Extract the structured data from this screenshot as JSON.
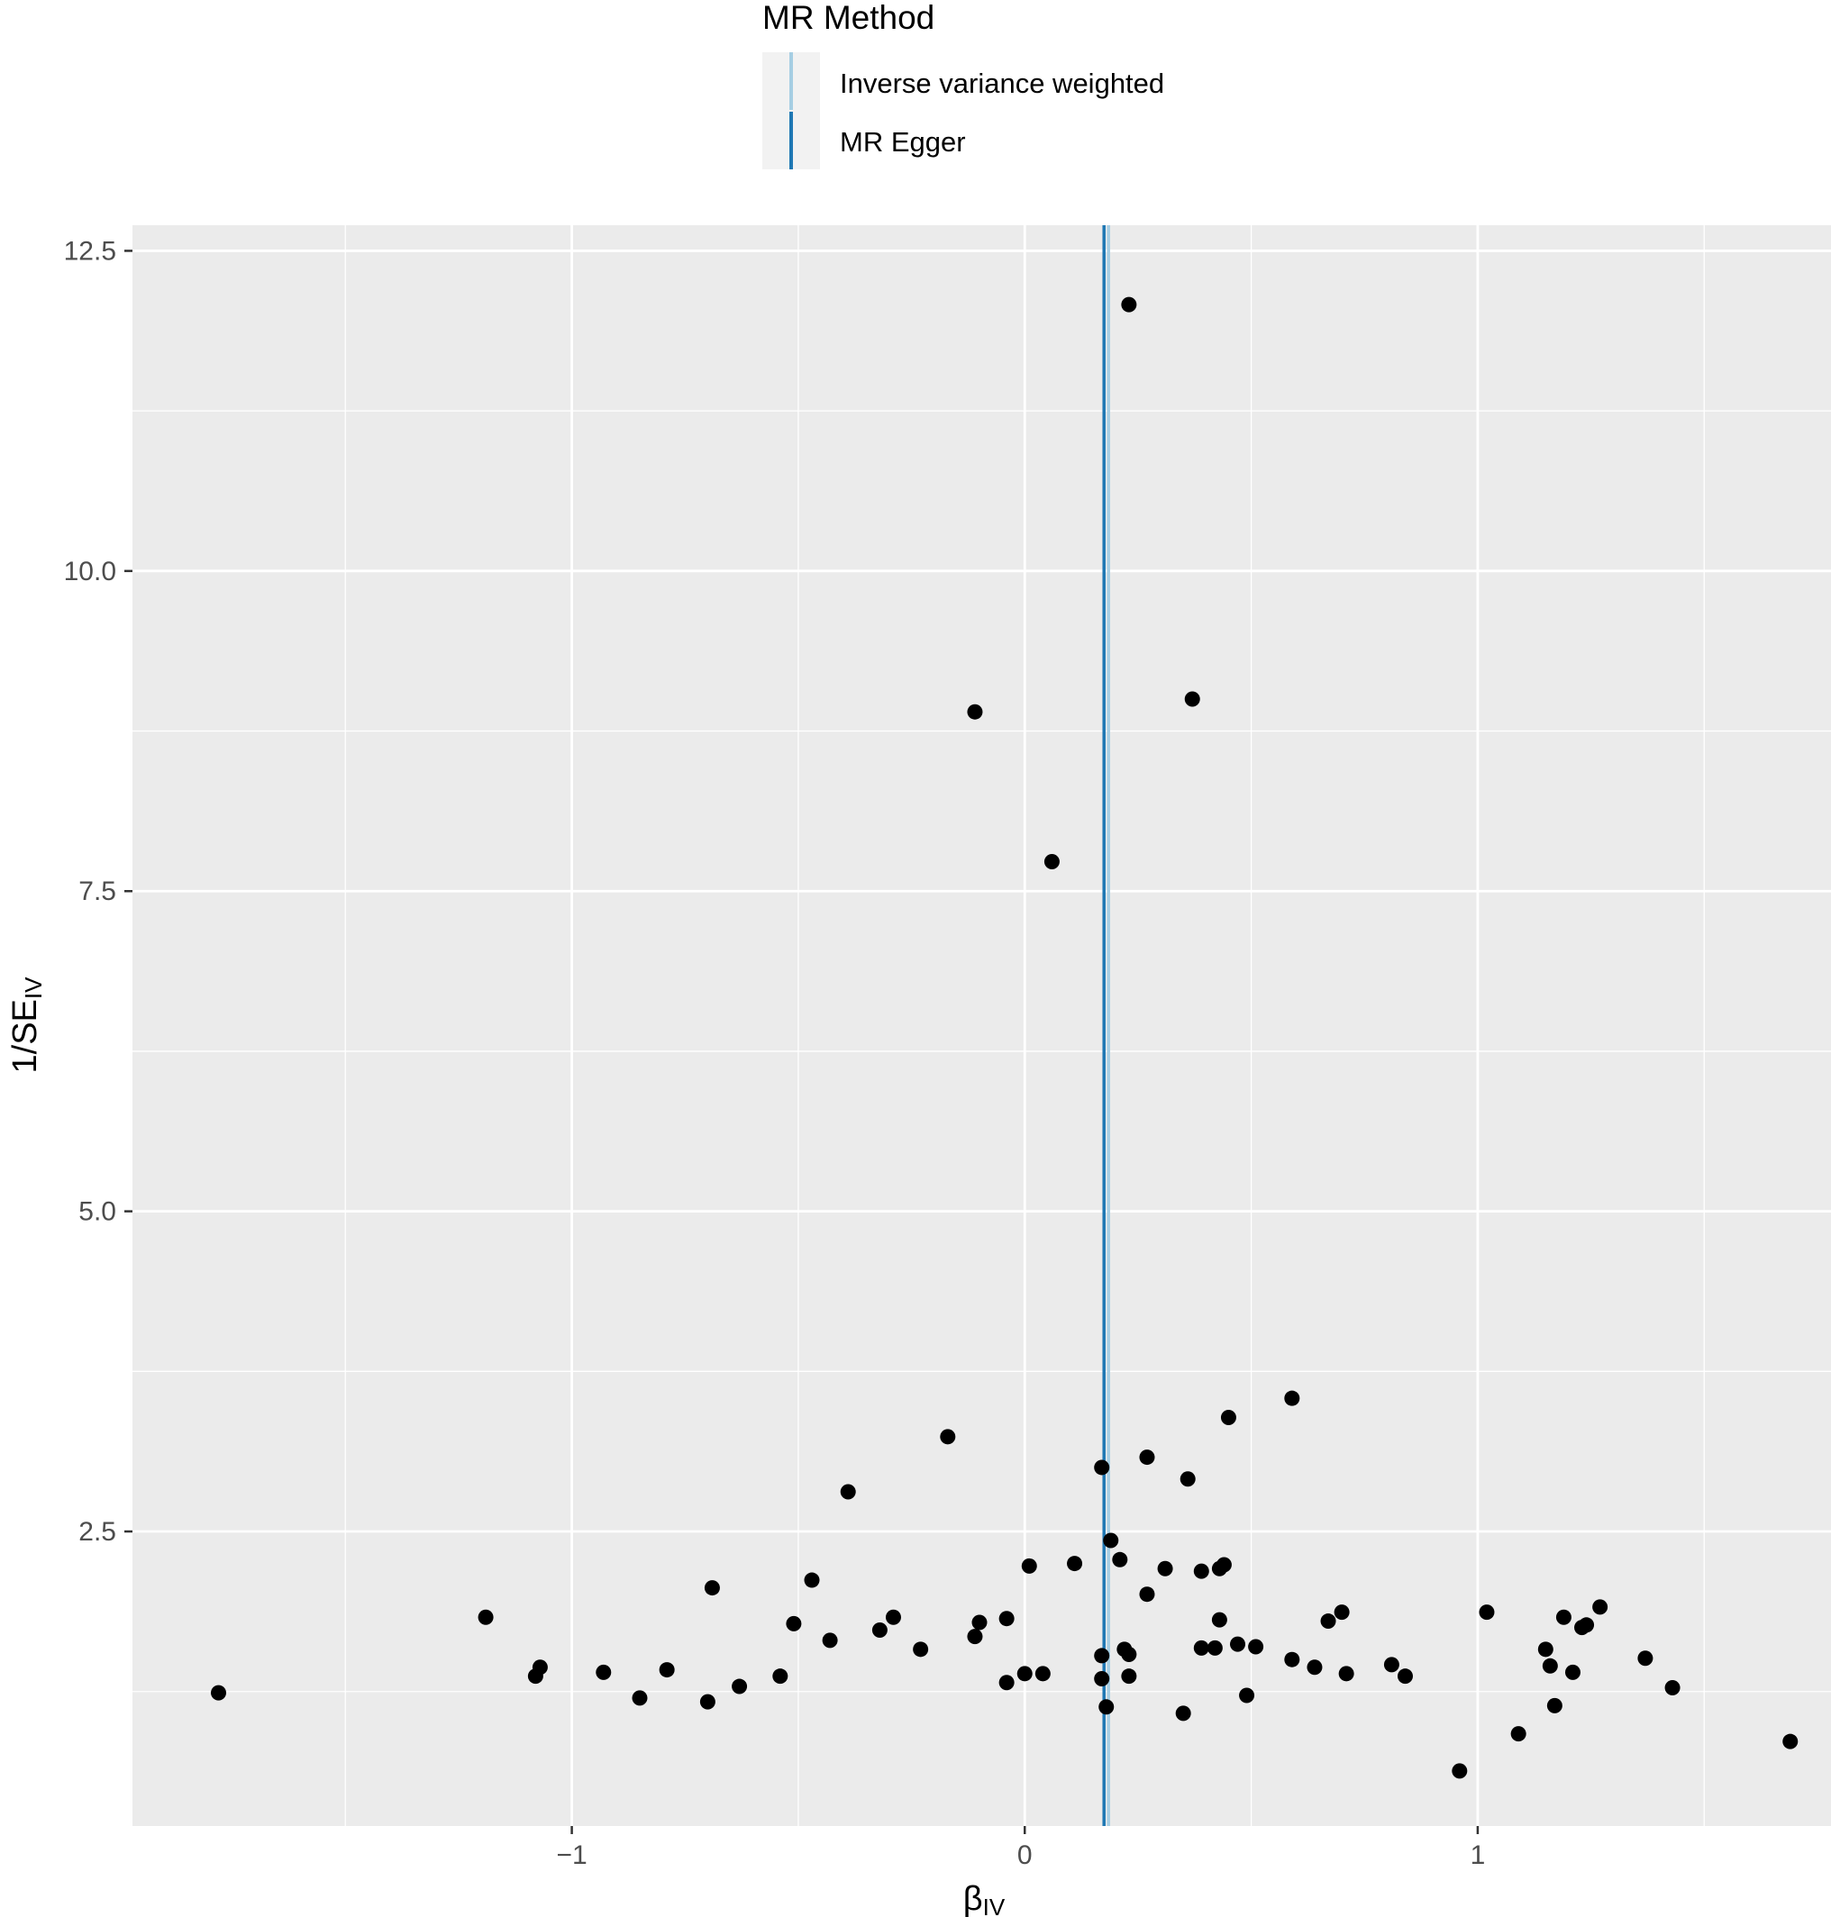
{
  "legend": {
    "title": "MR Method",
    "items": [
      {
        "label": "Inverse variance weighted",
        "color": "#a6cee3"
      },
      {
        "label": "MR Egger",
        "color": "#1f78b4"
      }
    ]
  },
  "chart_data": {
    "type": "scatter",
    "title": "",
    "xlabel": "β",
    "xlabel_sub": "IV",
    "ylabel": "1/SE",
    "ylabel_sub": "IV",
    "xlim": [
      -1.97,
      1.78
    ],
    "ylim": [
      0.2,
      12.7
    ],
    "x_ticks": [
      {
        "value": -1,
        "label": "−1"
      },
      {
        "value": 0,
        "label": "0"
      },
      {
        "value": 1,
        "label": "1"
      }
    ],
    "y_ticks": [
      {
        "value": 2.5,
        "label": "2.5"
      },
      {
        "value": 5.0,
        "label": "5.0"
      },
      {
        "value": 7.5,
        "label": "7.5"
      },
      {
        "value": 10.0,
        "label": "10.0"
      },
      {
        "value": 12.5,
        "label": "12.5"
      }
    ],
    "grid": true,
    "legend_position": "top",
    "background": "#ebebeb",
    "point_color": "#000000",
    "vertical_lines": [
      {
        "method": "Inverse variance weighted",
        "x": 0.185,
        "color": "#a6cee3"
      },
      {
        "method": "MR Egger",
        "x": 0.175,
        "color": "#1f78b4"
      }
    ],
    "points": [
      {
        "x": 0.23,
        "y": 12.08
      },
      {
        "x": -0.11,
        "y": 8.9
      },
      {
        "x": 0.37,
        "y": 9.0
      },
      {
        "x": 0.06,
        "y": 7.73
      },
      {
        "x": 0.59,
        "y": 3.54
      },
      {
        "x": 0.45,
        "y": 3.39
      },
      {
        "x": -0.17,
        "y": 3.24
      },
      {
        "x": 0.27,
        "y": 3.08
      },
      {
        "x": 0.17,
        "y": 3.0
      },
      {
        "x": 0.36,
        "y": 2.91
      },
      {
        "x": -0.39,
        "y": 2.81
      },
      {
        "x": 0.19,
        "y": 2.43
      },
      {
        "x": 0.21,
        "y": 2.28
      },
      {
        "x": 0.11,
        "y": 2.25
      },
      {
        "x": 0.01,
        "y": 2.23
      },
      {
        "x": 0.31,
        "y": 2.21
      },
      {
        "x": 0.39,
        "y": 2.19
      },
      {
        "x": 0.43,
        "y": 2.21
      },
      {
        "x": 0.44,
        "y": 2.24
      },
      {
        "x": -0.47,
        "y": 2.12
      },
      {
        "x": -0.69,
        "y": 2.06
      },
      {
        "x": 0.27,
        "y": 2.01
      },
      {
        "x": -1.19,
        "y": 1.83
      },
      {
        "x": -0.29,
        "y": 1.83
      },
      {
        "x": -0.51,
        "y": 1.78
      },
      {
        "x": -0.32,
        "y": 1.73
      },
      {
        "x": -0.1,
        "y": 1.79
      },
      {
        "x": -0.04,
        "y": 1.82
      },
      {
        "x": -0.11,
        "y": 1.68
      },
      {
        "x": 0.43,
        "y": 1.81
      },
      {
        "x": 0.67,
        "y": 1.8
      },
      {
        "x": 0.7,
        "y": 1.87
      },
      {
        "x": 1.02,
        "y": 1.87
      },
      {
        "x": 1.19,
        "y": 1.83
      },
      {
        "x": 1.23,
        "y": 1.75
      },
      {
        "x": 1.24,
        "y": 1.77
      },
      {
        "x": 1.27,
        "y": 1.91
      },
      {
        "x": -0.43,
        "y": 1.65
      },
      {
        "x": -0.23,
        "y": 1.58
      },
      {
        "x": 0.22,
        "y": 1.58
      },
      {
        "x": 0.23,
        "y": 1.54
      },
      {
        "x": 0.39,
        "y": 1.59
      },
      {
        "x": 0.42,
        "y": 1.59
      },
      {
        "x": 0.47,
        "y": 1.62
      },
      {
        "x": 0.51,
        "y": 1.6
      },
      {
        "x": 0.17,
        "y": 1.53
      },
      {
        "x": 0.59,
        "y": 1.5
      },
      {
        "x": 0.64,
        "y": 1.44
      },
      {
        "x": 1.15,
        "y": 1.58
      },
      {
        "x": 1.16,
        "y": 1.45
      },
      {
        "x": 1.37,
        "y": 1.51
      },
      {
        "x": -1.07,
        "y": 1.44
      },
      {
        "x": -1.08,
        "y": 1.37
      },
      {
        "x": -0.93,
        "y": 1.4
      },
      {
        "x": -0.79,
        "y": 1.42
      },
      {
        "x": -0.54,
        "y": 1.37
      },
      {
        "x": 0.0,
        "y": 1.39
      },
      {
        "x": 0.04,
        "y": 1.39
      },
      {
        "x": 0.17,
        "y": 1.35
      },
      {
        "x": 0.23,
        "y": 1.37
      },
      {
        "x": 0.71,
        "y": 1.39
      },
      {
        "x": 0.81,
        "y": 1.46
      },
      {
        "x": 0.84,
        "y": 1.37
      },
      {
        "x": 1.21,
        "y": 1.4
      },
      {
        "x": -1.78,
        "y": 1.24
      },
      {
        "x": -0.63,
        "y": 1.29
      },
      {
        "x": -0.04,
        "y": 1.32
      },
      {
        "x": 1.43,
        "y": 1.28
      },
      {
        "x": -0.85,
        "y": 1.2
      },
      {
        "x": -0.7,
        "y": 1.17
      },
      {
        "x": 0.49,
        "y": 1.22
      },
      {
        "x": 0.18,
        "y": 1.13
      },
      {
        "x": 0.35,
        "y": 1.08
      },
      {
        "x": 1.17,
        "y": 1.14
      },
      {
        "x": 1.09,
        "y": 0.92
      },
      {
        "x": 1.69,
        "y": 0.86
      },
      {
        "x": 0.96,
        "y": 0.63
      }
    ]
  }
}
